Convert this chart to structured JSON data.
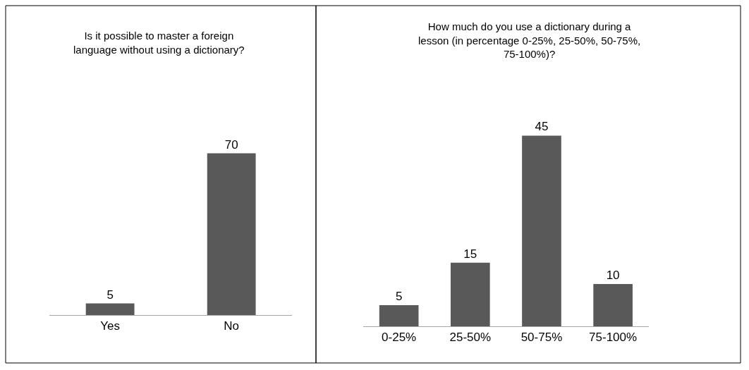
{
  "chart_data": [
    {
      "type": "bar",
      "title": "Is it possible to master a foreign language without using a dictionary?",
      "categories": [
        "Yes",
        "No"
      ],
      "values": [
        5,
        70
      ],
      "color": "#595959",
      "data_labels": true
    },
    {
      "type": "bar",
      "title": "How much do you use a dictionary during a lesson (in percentage 0-25%, 25-50%, 50-75%, 75-100%)?",
      "categories": [
        "0-25%",
        "25-50%",
        "50-75%",
        "75-100%"
      ],
      "values": [
        5,
        15,
        45,
        10
      ],
      "color": "#595959",
      "data_labels": true
    }
  ]
}
